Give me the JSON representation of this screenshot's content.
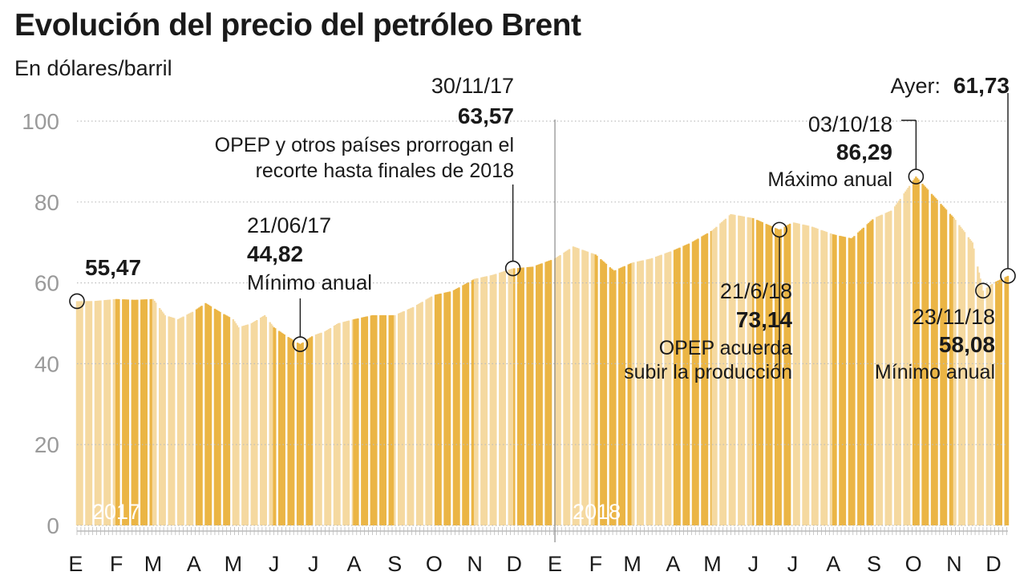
{
  "title": "Evolución del precio del petróleo Brent",
  "subtitle": "En dólares/barril",
  "colors": {
    "bar_light": "#F5D9A0",
    "bar_dark": "#EBB545",
    "grid": "#BDBDBD",
    "axis_text": "#9A9A9A",
    "text": "#1a1a1a",
    "year_label": "#ffffff"
  },
  "chart_data": {
    "type": "bar",
    "ylim": [
      0,
      100
    ],
    "yticks": [
      0,
      20,
      40,
      60,
      80,
      100
    ],
    "ytick_labels": [
      "0",
      "20",
      "40",
      "60",
      "80",
      "100"
    ],
    "grid": true,
    "x_range": [
      "2017-01-02",
      "2018-12-12"
    ],
    "month_labels": [
      "E",
      "F",
      "M",
      "A",
      "M",
      "J",
      "J",
      "A",
      "S",
      "O",
      "N",
      "D",
      "E",
      "F",
      "M",
      "A",
      "M",
      "J",
      "J",
      "A",
      "S",
      "O",
      "N",
      "D"
    ],
    "year_labels": [
      "2017",
      "2018"
    ],
    "series": [
      {
        "x": [
          "2017-01-02",
          "2017-01-15",
          "2017-02-01",
          "2017-02-15",
          "2017-03-01",
          "2017-03-10",
          "2017-03-20",
          "2017-04-01",
          "2017-04-10",
          "2017-04-20",
          "2017-05-01",
          "2017-05-05",
          "2017-05-15",
          "2017-05-25",
          "2017-06-01",
          "2017-06-10",
          "2017-06-21",
          "2017-07-01",
          "2017-07-10",
          "2017-07-20",
          "2017-08-01",
          "2017-08-15",
          "2017-09-01",
          "2017-09-15",
          "2017-10-01",
          "2017-10-15",
          "2017-11-01",
          "2017-11-15",
          "2017-11-30",
          "2017-12-15",
          "2018-01-01",
          "2018-01-15",
          "2018-02-01",
          "2018-02-15",
          "2018-03-01",
          "2018-03-15",
          "2018-04-01",
          "2018-04-15",
          "2018-05-01",
          "2018-05-15",
          "2018-06-01",
          "2018-06-21",
          "2018-07-01",
          "2018-07-15",
          "2018-08-01",
          "2018-08-15",
          "2018-09-01",
          "2018-09-15",
          "2018-10-03",
          "2018-10-15",
          "2018-11-01",
          "2018-11-15",
          "2018-11-23",
          "2018-12-01",
          "2018-12-12"
        ],
        "values": [
          55.47,
          55.5,
          56,
          55.8,
          56,
          52,
          51,
          53,
          55,
          53,
          51,
          49,
          50,
          52,
          49,
          47,
          44.82,
          47,
          48,
          50,
          51,
          52,
          52,
          54,
          57,
          58,
          61,
          62,
          63.57,
          64,
          66,
          69,
          67,
          63,
          65,
          66,
          68,
          70,
          73,
          77,
          76,
          73.14,
          75,
          74,
          72,
          71,
          76,
          78,
          86.29,
          82,
          76,
          70,
          58.08,
          60,
          61.73
        ]
      }
    ],
    "annotations": [
      {
        "date": "2017-01-02",
        "value": 55.47,
        "label_value": "55,47"
      },
      {
        "date": "2017-06-21",
        "value": 44.82,
        "label_date": "21/06/17",
        "label_value": "44,82",
        "text": "Mínimo anual"
      },
      {
        "date": "2017-11-30",
        "value": 63.57,
        "label_date": "30/11/17",
        "label_value": "63,57",
        "text": "OPEP y otros países prorrogan el",
        "text2": "recorte hasta finales de 2018"
      },
      {
        "date": "2018-06-21",
        "value": 73.14,
        "label_date": "21/6/18",
        "label_value": "73,14",
        "text": "OPEP acuerda",
        "text2": "subir la producción"
      },
      {
        "date": "2018-10-03",
        "value": 86.29,
        "label_date": "03/10/18",
        "label_value": "86,29",
        "text": "Máximo anual"
      },
      {
        "date": "2018-11-23",
        "value": 58.08,
        "label_date": "23/11/18",
        "label_value": "58,08",
        "text": "Mínimo anual"
      },
      {
        "date": "2018-12-12",
        "value": 61.73,
        "label_date": "Ayer:",
        "label_value": "61,73"
      }
    ]
  }
}
